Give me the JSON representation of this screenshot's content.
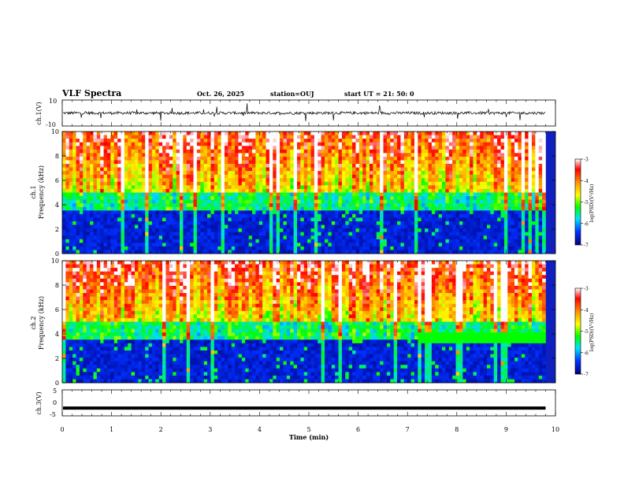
{
  "header": {
    "title": "VLF Spectra",
    "date": "Oct. 26, 2025",
    "station": "station=OUJ",
    "start": "start  UT  =   21: 50: 0"
  },
  "chart_data": [
    {
      "type": "line",
      "panel": "ch1",
      "ylabel": "ch.1(V)",
      "ylim": [
        -10,
        10
      ],
      "y_ticks": [
        "10",
        "-10"
      ],
      "baseline": 0,
      "color": "#000000"
    },
    {
      "type": "heatmap",
      "panel": "spec1",
      "ylabel_line1": "ch.1",
      "ylabel_line2": "Frequency (kHz)",
      "ylim": [
        0,
        10
      ],
      "y_ticks": [
        "0",
        "2",
        "4",
        "6",
        "8",
        "10"
      ],
      "colorbar": {
        "label": "log(PSD)(V²/Hz)",
        "range": [
          -7,
          -3
        ],
        "ticks": [
          "-3",
          "-4",
          "-5",
          "-6",
          "-7"
        ]
      }
    },
    {
      "type": "heatmap",
      "panel": "spec2",
      "ylabel_line1": "ch.2",
      "ylabel_line2": "Frequency (kHz)",
      "ylim": [
        0,
        10
      ],
      "y_ticks": [
        "0",
        "2",
        "4",
        "6",
        "8",
        "10"
      ],
      "colorbar": {
        "label": "log(PSD)(V²/Hz)",
        "range": [
          -7,
          -3
        ],
        "ticks": [
          "-3",
          "-4",
          "-5",
          "-6",
          "-7"
        ]
      },
      "band_onset_min": 7.2,
      "band_khz": [
        3.3,
        3.7
      ]
    },
    {
      "type": "line",
      "panel": "ch3",
      "ylabel": "ch.3(V)",
      "ylim": [
        -5,
        5
      ],
      "y_ticks": [
        "5",
        "0",
        "-5"
      ],
      "level": -2,
      "color": "#000000"
    }
  ],
  "xaxis": {
    "label": "Time  (min)",
    "range": [
      0,
      10
    ],
    "ticks": [
      "0",
      "1",
      "2",
      "3",
      "4",
      "5",
      "6",
      "7",
      "8",
      "9",
      "10"
    ],
    "data_end_min": 9.8
  }
}
